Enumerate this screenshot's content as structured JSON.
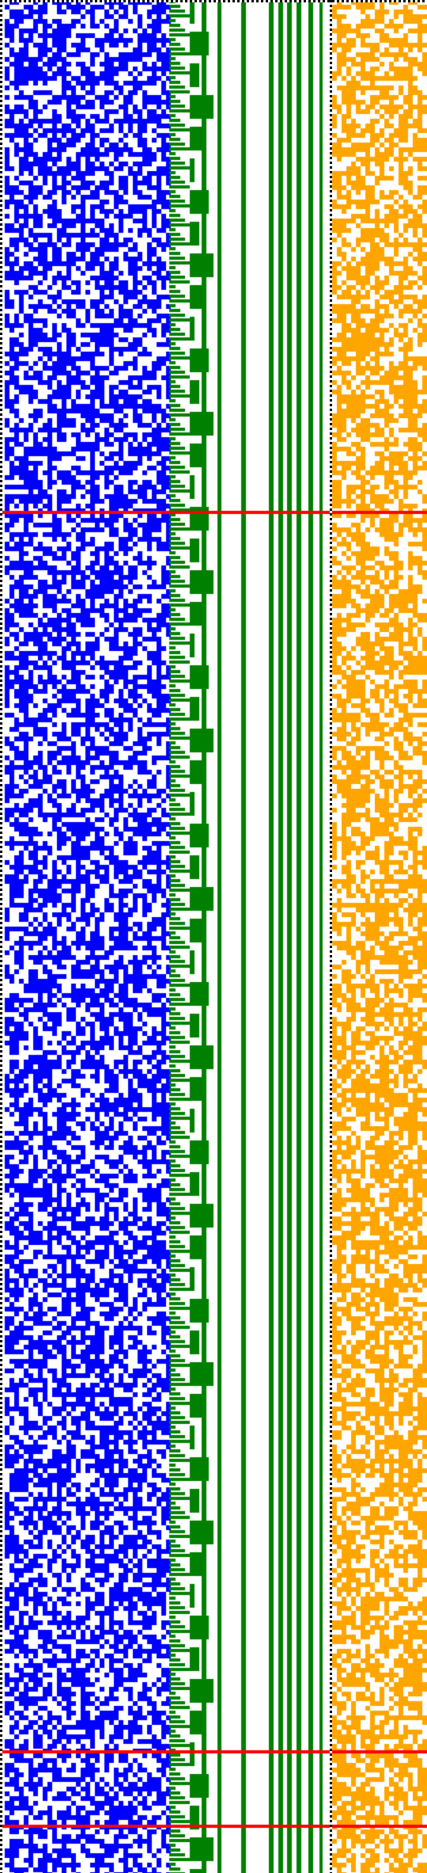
{
  "palette": {
    "blue": "#0000ff",
    "green": "#008000",
    "orange": "#ffa500",
    "red": "#ff0000",
    "black": "#000000",
    "background": "#ffffff"
  },
  "bitmap": {
    "seed_blue": 1234567,
    "seed_orange": 7654321,
    "blue_density": 0.58,
    "orange_density": 0.62
  },
  "markers": {
    "count": 3
  }
}
